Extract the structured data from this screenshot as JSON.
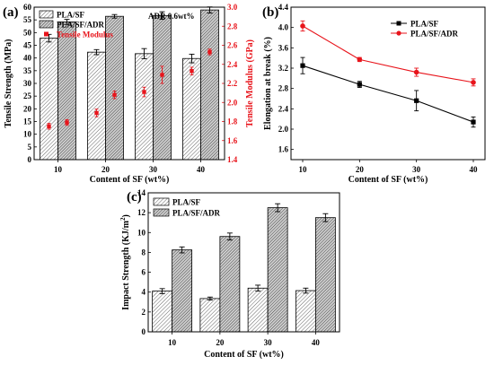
{
  "chart_data": [
    {
      "panel": "(a)",
      "type": "bar",
      "categories": [
        "10",
        "20",
        "30",
        "40"
      ],
      "xlabel": "Content of SF (wt%)",
      "ylabel": "Tensile Strength (MPa)",
      "ylim": [
        0,
        60
      ],
      "yticks": [
        0,
        5,
        10,
        15,
        20,
        25,
        30,
        35,
        40,
        45,
        50,
        55,
        60
      ],
      "ylabel_right": "Tensile Modulus (GPa)",
      "ylim_right": [
        1.4,
        3.0
      ],
      "yticks_right": [
        "1.4",
        "1.6",
        "1.8",
        "2.0",
        "2.2",
        "2.4",
        "2.6",
        "2.8",
        "3.0"
      ],
      "annotation": "ADR 0.6wt%",
      "legend_placement": "top-left",
      "series": [
        {
          "name": "PLA/SF",
          "values": [
            47.8,
            42.3,
            41.7,
            39.8
          ],
          "errors": [
            1.5,
            1.0,
            2.0,
            1.7
          ],
          "pattern": "light"
        },
        {
          "name": "PLA/SF/ADR",
          "values": [
            54.2,
            56.4,
            56.7,
            58.9
          ],
          "errors": [
            1.0,
            0.7,
            1.5,
            1.2
          ],
          "pattern": "dark"
        }
      ],
      "scatter_series": {
        "name": "Tensile Modulus",
        "axis": "right",
        "color": "#e8141b",
        "points": [
          {
            "x": "10",
            "offset": "left",
            "y": 1.75,
            "err": 0.03
          },
          {
            "x": "10",
            "offset": "right",
            "y": 1.79,
            "err": 0.03
          },
          {
            "x": "20",
            "offset": "left",
            "y": 1.89,
            "err": 0.04
          },
          {
            "x": "20",
            "offset": "right",
            "y": 2.08,
            "err": 0.04
          },
          {
            "x": "30",
            "offset": "left",
            "y": 2.11,
            "err": 0.05
          },
          {
            "x": "30",
            "offset": "right",
            "y": 2.29,
            "err": 0.09
          },
          {
            "x": "40",
            "offset": "left",
            "y": 2.33,
            "err": 0.04
          },
          {
            "x": "40",
            "offset": "right",
            "y": 2.53,
            "err": 0.03
          }
        ]
      }
    },
    {
      "panel": "(b)",
      "type": "line",
      "x": [
        "10",
        "20",
        "30",
        "40"
      ],
      "xlabel": "Content of SF (wt%)",
      "ylabel": "Elongation at break (%)",
      "ylim": [
        1.4,
        4.4
      ],
      "yticks": [
        "1.6",
        "2.0",
        "2.4",
        "2.8",
        "3.2",
        "3.6",
        "4.0",
        "4.4"
      ],
      "legend_placement": "top-right",
      "series": [
        {
          "name": "PLA/SF",
          "color": "#000000",
          "marker": "square",
          "values": [
            3.25,
            2.88,
            2.56,
            2.14
          ],
          "errors": [
            0.16,
            0.06,
            0.2,
            0.1
          ]
        },
        {
          "name": "PLA/SF/ADR",
          "color": "#e8141b",
          "marker": "circle",
          "values": [
            4.03,
            3.37,
            3.12,
            2.92
          ],
          "errors": [
            0.1,
            0.04,
            0.08,
            0.07
          ]
        }
      ]
    },
    {
      "panel": "(c)",
      "type": "bar",
      "categories": [
        "10",
        "20",
        "30",
        "40"
      ],
      "xlabel": "Content of SF (wt%)",
      "ylabel": "Impact Strength (KJ/m",
      "ylabel_sup": "2",
      "ylabel_close": ")",
      "ylim": [
        0,
        14
      ],
      "yticks": [
        0,
        2,
        4,
        6,
        8,
        10,
        12,
        14
      ],
      "legend_placement": "top-left",
      "series": [
        {
          "name": "PLA/SF",
          "values": [
            4.1,
            3.35,
            4.4,
            4.15
          ],
          "errors": [
            0.25,
            0.15,
            0.3,
            0.25
          ],
          "pattern": "light"
        },
        {
          "name": "PLA/SF/ADR",
          "values": [
            8.25,
            9.6,
            12.5,
            11.5
          ],
          "errors": [
            0.3,
            0.35,
            0.4,
            0.4
          ],
          "pattern": "dark"
        }
      ]
    }
  ]
}
